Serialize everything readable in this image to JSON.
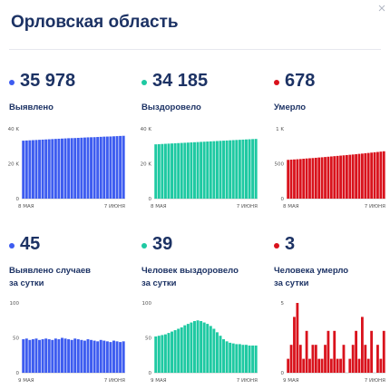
{
  "header": {
    "title": "Орловская область"
  },
  "colors": {
    "blue": "#3d5cf0",
    "teal": "#1ec9a2",
    "red": "#d9121c",
    "title": "#1c3264"
  },
  "panels": [
    {
      "value": "35 978",
      "label": "Выявлено",
      "color": "#3d5cf0",
      "chart_data": {
        "type": "bar",
        "ylim": [
          0,
          40000
        ],
        "y_ticks": [
          {
            "v": 0,
            "label": "0"
          },
          {
            "v": 20000,
            "label": "20 K"
          },
          {
            "v": 40000,
            "label": "40 K"
          }
        ],
        "x_ticks": [
          "8 МАЯ",
          "7 ИЮНЯ"
        ],
        "values": [
          33200,
          33300,
          33400,
          33500,
          33600,
          33700,
          33800,
          33900,
          34000,
          34100,
          34200,
          34300,
          34400,
          34500,
          34600,
          34650,
          34700,
          34800,
          34900,
          35000,
          35100,
          35150,
          35200,
          35300,
          35400,
          35500,
          35550,
          35600,
          35700,
          35800,
          35900,
          35978
        ]
      }
    },
    {
      "value": "34 185",
      "label": "Выздоровело",
      "color": "#1ec9a2",
      "chart_data": {
        "type": "bar",
        "ylim": [
          0,
          40000
        ],
        "y_ticks": [
          {
            "v": 0,
            "label": "0"
          },
          {
            "v": 20000,
            "label": "20 K"
          },
          {
            "v": 40000,
            "label": "40 K"
          }
        ],
        "x_ticks": [
          "8 МАЯ",
          "7 ИЮНЯ"
        ],
        "values": [
          31100,
          31200,
          31300,
          31400,
          31500,
          31600,
          31700,
          31800,
          31900,
          32000,
          32100,
          32200,
          32300,
          32400,
          32500,
          32600,
          32700,
          32800,
          32900,
          33000,
          33100,
          33200,
          33300,
          33400,
          33500,
          33600,
          33700,
          33800,
          33900,
          34000,
          34100,
          34185
        ]
      }
    },
    {
      "value": "678",
      "label": "Умерло",
      "color": "#d9121c",
      "chart_data": {
        "type": "bar",
        "ylim": [
          0,
          1000
        ],
        "y_ticks": [
          {
            "v": 0,
            "label": "0"
          },
          {
            "v": 500,
            "label": "500"
          },
          {
            "v": 1000,
            "label": "1 K"
          }
        ],
        "x_ticks": [
          "8 МАЯ",
          "7 ИЮНЯ"
        ],
        "values": [
          555,
          558,
          561,
          564,
          567,
          571,
          575,
          578,
          581,
          585,
          589,
          592,
          596,
          600,
          604,
          608,
          612,
          616,
          620,
          624,
          628,
          632,
          636,
          641,
          645,
          650,
          654,
          659,
          664,
          668,
          673,
          678
        ]
      }
    },
    {
      "value": "45",
      "label": "Выявлено случаев\nза сутки",
      "color": "#3d5cf0",
      "chart_data": {
        "type": "bar",
        "ylim": [
          0,
          100
        ],
        "y_ticks": [
          {
            "v": 0,
            "label": "0"
          },
          {
            "v": 50,
            "label": "50"
          },
          {
            "v": 100,
            "label": "100"
          }
        ],
        "x_ticks": [
          "9 МАЯ",
          "7 ИЮНЯ"
        ],
        "values": [
          48,
          49,
          47,
          48,
          49,
          47,
          48,
          49,
          48,
          47,
          49,
          48,
          50,
          49,
          48,
          47,
          49,
          48,
          47,
          46,
          48,
          47,
          46,
          45,
          47,
          46,
          45,
          44,
          46,
          45,
          44,
          45
        ]
      }
    },
    {
      "value": "39",
      "label": "Человек выздоровело\nза сутки",
      "color": "#1ec9a2",
      "chart_data": {
        "type": "bar",
        "ylim": [
          0,
          100
        ],
        "y_ticks": [
          {
            "v": 0,
            "label": "0"
          },
          {
            "v": 50,
            "label": "50"
          },
          {
            "v": 100,
            "label": "100"
          }
        ],
        "x_ticks": [
          "9 МАЯ",
          "7 ИЮНЯ"
        ],
        "values": [
          52,
          53,
          54,
          55,
          57,
          59,
          61,
          63,
          65,
          68,
          70,
          72,
          74,
          75,
          74,
          72,
          70,
          67,
          63,
          58,
          53,
          48,
          45,
          43,
          42,
          41,
          41,
          40,
          40,
          39,
          39,
          39
        ]
      }
    },
    {
      "value": "3",
      "label": "Человека умерло\nза сутки",
      "color": "#d9121c",
      "chart_data": {
        "type": "bar",
        "ylim": [
          0,
          5
        ],
        "y_ticks": [
          {
            "v": 0,
            "label": "0"
          },
          {
            "v": 5,
            "label": "5"
          }
        ],
        "x_ticks": [
          "9 МАЯ",
          "7 ИЮНЯ"
        ],
        "values": [
          1,
          2,
          4,
          5,
          2,
          1,
          3,
          1,
          2,
          2,
          1,
          1,
          2,
          3,
          1,
          3,
          1,
          1,
          2,
          0,
          1,
          2,
          3,
          1,
          4,
          2,
          1,
          3,
          0,
          2,
          1,
          3
        ]
      }
    }
  ]
}
